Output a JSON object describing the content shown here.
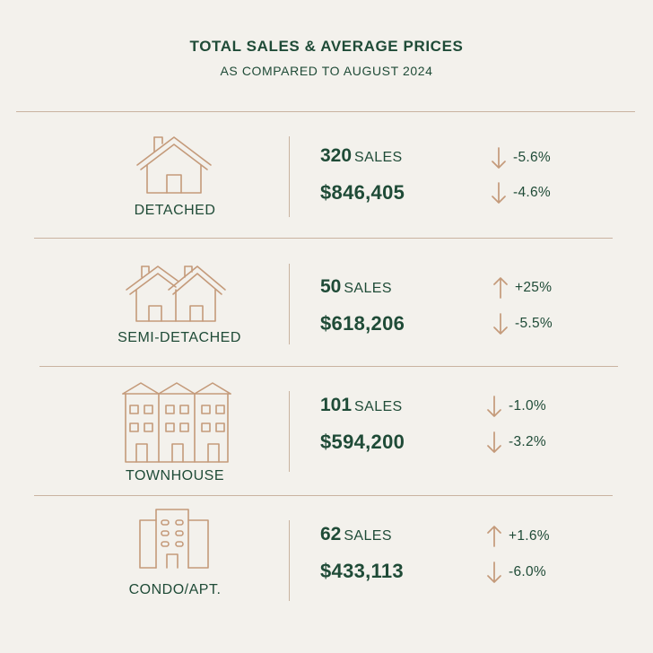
{
  "header": {
    "title": "TOTAL SALES & AVERAGE PRICES",
    "subtitle": "AS COMPARED TO AUGUST 2024"
  },
  "colors": {
    "text": "#1f4b37",
    "accent": "#c49a7a",
    "divider": "#c9b3a0",
    "background": "#f3f1ec"
  },
  "rows": [
    {
      "label": "DETACHED",
      "icon": "single-house-icon",
      "sales_count": "320",
      "sales_unit": "SALES",
      "sales_change": "-5.6%",
      "sales_direction": "down",
      "avg_price": "$846,405",
      "price_change": "-4.6%",
      "price_direction": "down"
    },
    {
      "label": "SEMI-DETACHED",
      "icon": "semi-detached-houses-icon",
      "sales_count": "50",
      "sales_unit": "SALES",
      "sales_change": "+25%",
      "sales_direction": "up",
      "avg_price": "$618,206",
      "price_change": "-5.5%",
      "price_direction": "down"
    },
    {
      "label": "TOWNHOUSE",
      "icon": "townhouse-icon",
      "sales_count": "101",
      "sales_unit": "SALES",
      "sales_change": "-1.0%",
      "sales_direction": "down",
      "avg_price": "$594,200",
      "price_change": "-3.2%",
      "price_direction": "down"
    },
    {
      "label": "CONDO/APT.",
      "icon": "condo-building-icon",
      "sales_count": "62",
      "sales_unit": "SALES",
      "sales_change": "+1.6%",
      "sales_direction": "up",
      "avg_price": "$433,113",
      "price_change": "-6.0%",
      "price_direction": "down"
    }
  ]
}
